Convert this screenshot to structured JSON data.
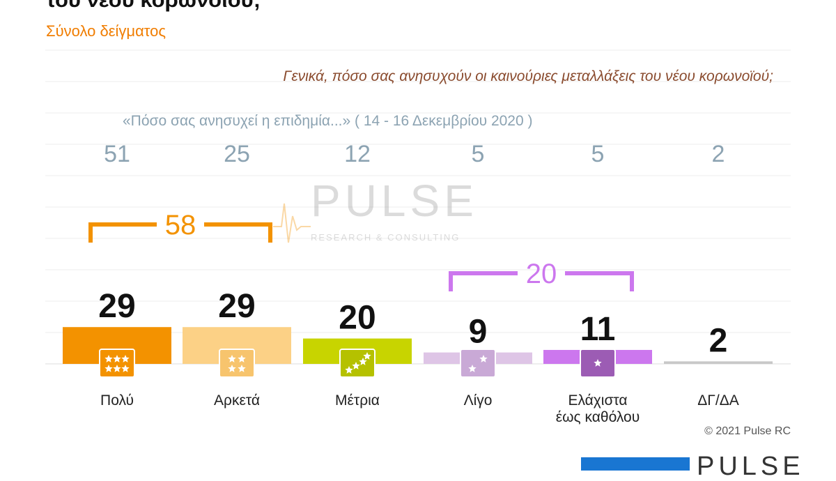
{
  "title_fragment": "του νέου κορωνοϊού;",
  "subtitle": "Σύνολο δείγματος",
  "question": "Γενικά, πόσο σας ανησυχούν οι καινούριες μεταλλάξεις του νέου κορωνοϊού;",
  "previous_caption": "«Πόσο σας ανησυχεί η επιδημία...» ( 14 - 16  Δεκεμβρίου  2020 )",
  "watermark": {
    "brand": "PULSE",
    "tagline": "RESEARCH & CONSULTING"
  },
  "copyright": "© 2021 Pulse RC",
  "footer_brand": "PULSE",
  "colors": {
    "polu": "#f39200",
    "arketa": "#fcd186",
    "metria": "#c8d400",
    "ligo": "#dec5e6",
    "elaxista": "#cc77ee",
    "dg": "#c8c8c8",
    "group_high": "#f39200",
    "group_low": "#cc77ee",
    "previous_values": "#8ca3b2"
  },
  "chart_data": {
    "type": "bar",
    "categories": [
      "Πολύ",
      "Αρκετά",
      "Μέτρια",
      "Λίγο",
      "Ελάχιστα έως καθόλου",
      "ΔΓ/ΔΑ"
    ],
    "series": [
      {
        "values": [
          29,
          29,
          20,
          9,
          11,
          2
        ]
      },
      {
        "values": [
          51,
          25,
          12,
          5,
          5,
          2
        ]
      }
    ],
    "current_labels": [
      "29",
      "29",
      "20",
      "9",
      "11",
      "2"
    ],
    "previous_labels": [
      "51",
      "25",
      "12",
      "5",
      "5",
      "2"
    ],
    "category_lines": [
      [
        "Πολύ"
      ],
      [
        "Αρκετά"
      ],
      [
        "Μέτρια"
      ],
      [
        "Λίγο"
      ],
      [
        "Ελάχιστα",
        "έως καθόλου"
      ],
      [
        "ΔΓ/ΔΑ"
      ]
    ],
    "icons": [
      "three-stars-icon",
      "two-stars-icon",
      "rising-stars-icon",
      "few-stars-icon",
      "one-star-icon",
      ""
    ],
    "groups": [
      {
        "label": "58",
        "categories": [
          "Πολύ",
          "Αρκετά"
        ],
        "value": 58
      },
      {
        "label": "20",
        "categories": [
          "Λίγο",
          "Ελάχιστα έως καθόλου"
        ],
        "value": 20
      }
    ],
    "ylim": [
      0,
      100
    ],
    "grid": true
  }
}
